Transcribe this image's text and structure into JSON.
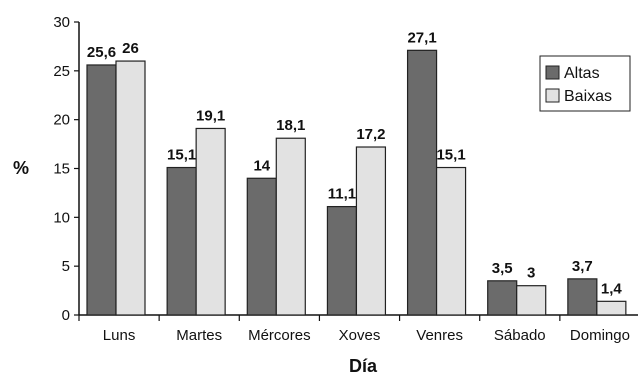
{
  "chart_data": {
    "type": "bar",
    "xlabel": "Día",
    "ylabel": "%",
    "ylim": [
      0,
      30
    ],
    "yticks": [
      0,
      5,
      10,
      15,
      20,
      25,
      30
    ],
    "categories": [
      "Luns",
      "Martes",
      "Mércores",
      "Xoves",
      "Venres",
      "Sábado",
      "Domingo"
    ],
    "series": [
      {
        "name": "Altas",
        "color": "#6b6b6b",
        "values": [
          25.6,
          15.1,
          14,
          11.1,
          27.1,
          3.5,
          3.7
        ],
        "labels": [
          "25,6",
          "15,1",
          "14",
          "11,1",
          "27,1",
          "3,5",
          "3,7"
        ]
      },
      {
        "name": "Baixas",
        "color": "#e2e2e2",
        "values": [
          26,
          19.1,
          18.1,
          17.2,
          15.1,
          3,
          1.4
        ],
        "labels": [
          "26",
          "19,1",
          "18,1",
          "17,2",
          "15,1",
          "3",
          "1,4"
        ]
      }
    ],
    "legend": "top-right",
    "grid": false
  }
}
